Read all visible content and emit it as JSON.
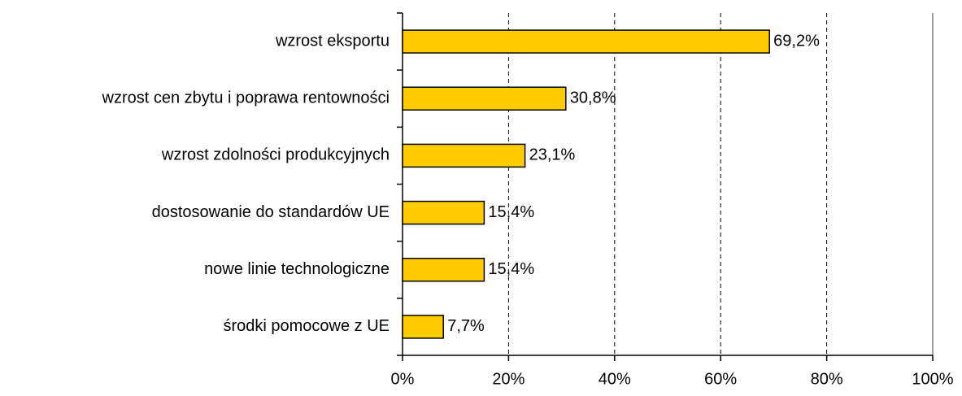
{
  "chart_data": {
    "type": "bar",
    "orientation": "horizontal",
    "categories": [
      "wzrost eksportu",
      "wzrost cen zbytu i poprawa rentowności",
      "wzrost zdolności produkcyjnych",
      "dostosowanie do standardów UE",
      "nowe linie technologiczne",
      "środki pomocowe z UE"
    ],
    "values": [
      69.2,
      30.8,
      23.1,
      15.4,
      15.4,
      7.7
    ],
    "value_labels": [
      "69,2%",
      "30,8%",
      "23,1%",
      "15,4%",
      "15,4%",
      "7,7%"
    ],
    "color": "#ffcc00",
    "xlim": [
      0,
      100
    ],
    "xticks": [
      {
        "value": 0,
        "label": "0%"
      },
      {
        "value": 20,
        "label": "20%"
      },
      {
        "value": 40,
        "label": "40%"
      },
      {
        "value": 60,
        "label": "60%"
      },
      {
        "value": 80,
        "label": "80%"
      },
      {
        "value": 100,
        "label": "100%"
      }
    ],
    "grid": true
  }
}
